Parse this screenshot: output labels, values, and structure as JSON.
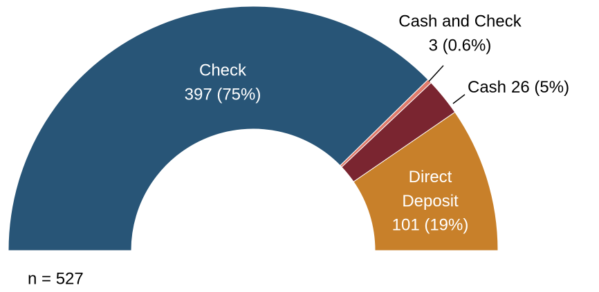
{
  "chart_data": {
    "type": "semi-donut",
    "categories": [
      "Check",
      "Cash and Check",
      "Cash",
      "Direct Deposit"
    ],
    "values": [
      397,
      3,
      26,
      101
    ],
    "value_labels": [
      "397 (75%)",
      "3 (0.6%)",
      "26 (5%)",
      "101 (19%)"
    ],
    "colors": [
      "#285577",
      "#e07a6a",
      "#7a2530",
      "#c8802a"
    ],
    "note": "n = 527"
  }
}
